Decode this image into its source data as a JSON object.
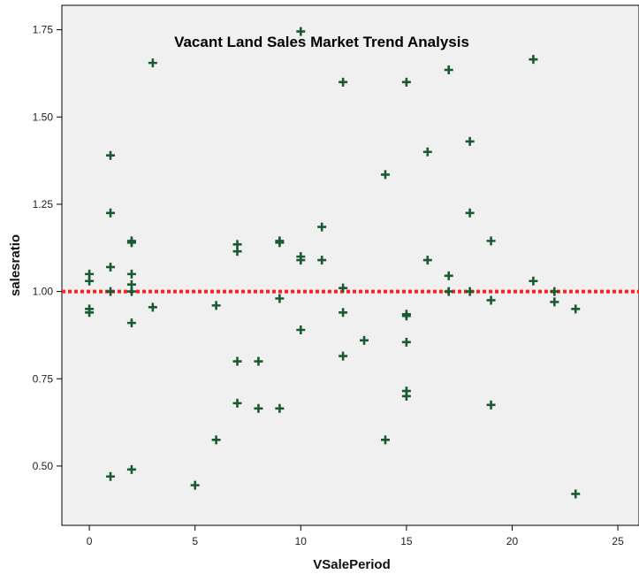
{
  "chart_data": {
    "type": "scatter",
    "title": "Vacant Land Sales Market Trend Analysis",
    "xlabel": "VSalePeriod",
    "ylabel": "salesratio",
    "xlim": [
      -1.3,
      26
    ],
    "ylim": [
      0.33,
      1.82
    ],
    "xticks": [
      0,
      5,
      10,
      15,
      20,
      25
    ],
    "yticks": [
      0.5,
      0.75,
      1.0,
      1.25,
      1.5,
      1.75
    ],
    "xtick_labels": [
      "0",
      "5",
      "10",
      "15",
      "20",
      "25"
    ],
    "ytick_labels": [
      "0.50",
      "0.75",
      "1.00",
      "1.25",
      "1.50",
      "1.75"
    ],
    "reference_line": {
      "y": 1.0,
      "style": "dotted",
      "color": "#ff2020"
    },
    "marker": "plus",
    "marker_color": "#1a5a32",
    "plot_background": "#f0f0f0",
    "grid": false,
    "points": [
      {
        "x": 0,
        "y": 1.05
      },
      {
        "x": 0,
        "y": 1.03
      },
      {
        "x": 0,
        "y": 0.95
      },
      {
        "x": 0,
        "y": 0.94
      },
      {
        "x": 1,
        "y": 1.39
      },
      {
        "x": 1,
        "y": 1.225
      },
      {
        "x": 1,
        "y": 1.07
      },
      {
        "x": 1,
        "y": 1.0
      },
      {
        "x": 1,
        "y": 0.47
      },
      {
        "x": 2,
        "y": 1.145
      },
      {
        "x": 2,
        "y": 1.14
      },
      {
        "x": 2,
        "y": 1.05
      },
      {
        "x": 2,
        "y": 1.02
      },
      {
        "x": 2,
        "y": 1.0
      },
      {
        "x": 2,
        "y": 0.91
      },
      {
        "x": 2,
        "y": 0.49
      },
      {
        "x": 3,
        "y": 1.655
      },
      {
        "x": 3,
        "y": 0.955
      },
      {
        "x": 5,
        "y": 0.445
      },
      {
        "x": 6,
        "y": 0.96
      },
      {
        "x": 6,
        "y": 0.575
      },
      {
        "x": 7,
        "y": 1.135
      },
      {
        "x": 7,
        "y": 1.115
      },
      {
        "x": 7,
        "y": 0.8
      },
      {
        "x": 7,
        "y": 0.68
      },
      {
        "x": 8,
        "y": 0.8
      },
      {
        "x": 8,
        "y": 0.665
      },
      {
        "x": 9,
        "y": 1.145
      },
      {
        "x": 9,
        "y": 1.14
      },
      {
        "x": 9,
        "y": 0.98
      },
      {
        "x": 9,
        "y": 0.665
      },
      {
        "x": 10,
        "y": 1.745
      },
      {
        "x": 10,
        "y": 1.1
      },
      {
        "x": 10,
        "y": 1.09
      },
      {
        "x": 10,
        "y": 0.89
      },
      {
        "x": 11,
        "y": 1.185
      },
      {
        "x": 11,
        "y": 1.09
      },
      {
        "x": 12,
        "y": 1.6
      },
      {
        "x": 12,
        "y": 1.01
      },
      {
        "x": 12,
        "y": 0.94
      },
      {
        "x": 12,
        "y": 0.815
      },
      {
        "x": 13,
        "y": 0.86
      },
      {
        "x": 14,
        "y": 1.335
      },
      {
        "x": 14,
        "y": 0.575
      },
      {
        "x": 15,
        "y": 1.6
      },
      {
        "x": 15,
        "y": 0.935
      },
      {
        "x": 15,
        "y": 0.93
      },
      {
        "x": 15,
        "y": 0.855
      },
      {
        "x": 15,
        "y": 0.715
      },
      {
        "x": 15,
        "y": 0.7
      },
      {
        "x": 16,
        "y": 1.4
      },
      {
        "x": 16,
        "y": 1.09
      },
      {
        "x": 17,
        "y": 1.635
      },
      {
        "x": 17,
        "y": 1.045
      },
      {
        "x": 17,
        "y": 1.0
      },
      {
        "x": 18,
        "y": 1.43
      },
      {
        "x": 18,
        "y": 1.225
      },
      {
        "x": 18,
        "y": 1.0
      },
      {
        "x": 19,
        "y": 1.145
      },
      {
        "x": 19,
        "y": 0.975
      },
      {
        "x": 19,
        "y": 0.675
      },
      {
        "x": 21,
        "y": 1.665
      },
      {
        "x": 21,
        "y": 1.03
      },
      {
        "x": 22,
        "y": 1.0
      },
      {
        "x": 22,
        "y": 0.97
      },
      {
        "x": 23,
        "y": 0.95
      },
      {
        "x": 23,
        "y": 0.42
      }
    ]
  }
}
